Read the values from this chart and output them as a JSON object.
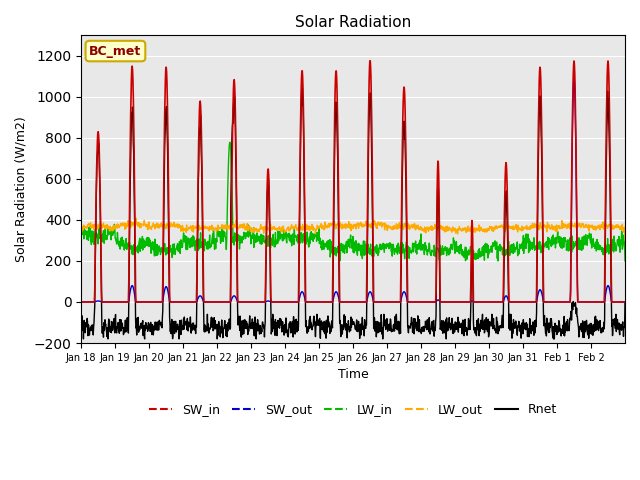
{
  "title": "Solar Radiation",
  "xlabel": "Time",
  "ylabel": "Solar Radiation (W/m2)",
  "station_label": "BC_met",
  "ylim": [
    -200,
    1300
  ],
  "yticks": [
    -200,
    0,
    200,
    400,
    600,
    800,
    1000,
    1200
  ],
  "background_color": "#ffffff",
  "plot_bg_color": "#e8e8e8",
  "legend_entries": [
    "SW_in",
    "SW_out",
    "LW_in",
    "LW_out",
    "Rnet"
  ],
  "line_colors": {
    "SW_in": "#cc0000",
    "SW_out": "#0000cc",
    "LW_in": "#00bb00",
    "LW_out": "#ffaa00",
    "Rnet": "#000000"
  },
  "xtick_labels": [
    "Jan 18",
    "Jan 19",
    "Jan 20",
    "Jan 21",
    "Jan 22",
    "Jan 23",
    "Jan 24",
    "Jan 25",
    "Jan 26",
    "Jan 27",
    "Jan 28",
    "Jan 29",
    "Jan 30",
    "Jan 31",
    "Feb 1",
    "Feb 2"
  ]
}
